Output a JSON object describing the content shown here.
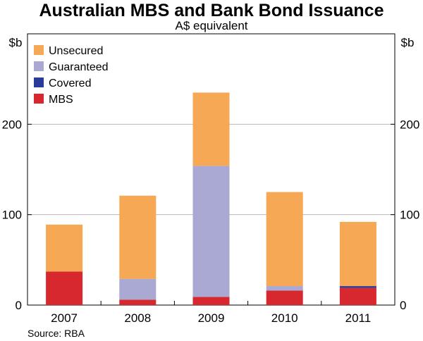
{
  "title": "Australian MBS and Bank Bond Issuance",
  "subtitle": "A$ equivalent",
  "source": "Source: RBA",
  "chart_data": {
    "type": "bar",
    "stacked": true,
    "categories": [
      "2007",
      "2008",
      "2009",
      "2010",
      "2011"
    ],
    "series": [
      {
        "name": "MBS",
        "color": "#d7282f",
        "values": [
          37,
          6,
          9,
          16,
          19
        ]
      },
      {
        "name": "Covered",
        "color": "#2a3c9a",
        "values": [
          0,
          0,
          0,
          0,
          2
        ]
      },
      {
        "name": "Guaranteed",
        "color": "#a9a9d3",
        "values": [
          0,
          23,
          145,
          5,
          0
        ]
      },
      {
        "name": "Unsecured",
        "color": "#f6a854",
        "values": [
          52,
          92,
          81,
          104,
          71
        ]
      }
    ],
    "legend_order": [
      "Unsecured",
      "Guaranteed",
      "Covered",
      "MBS"
    ],
    "legend_position": "top-left",
    "ylabel": "$b",
    "ylim": [
      0,
      300
    ],
    "yticks": [
      0,
      100,
      200
    ],
    "gridlines": true
  }
}
